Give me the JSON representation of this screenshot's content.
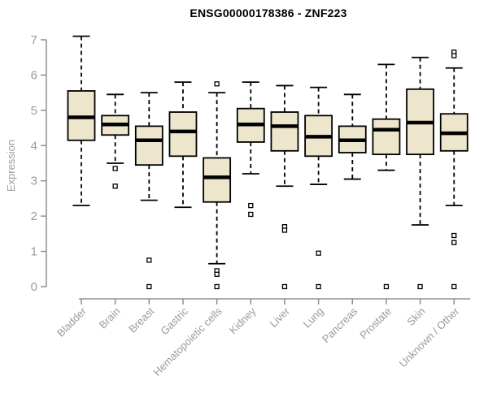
{
  "chart_data": {
    "type": "boxplot",
    "title": "ENSG00000178386 - ZNF223",
    "ylabel": "Expression",
    "xlabel": "",
    "ylim": [
      0,
      7
    ],
    "ytick_step": 1,
    "grid": false,
    "legend": "none",
    "categories": [
      "Bladder",
      "Brain",
      "Breast",
      "Gastric",
      "Hematopoietic cells",
      "Kidney",
      "Liver",
      "Lung",
      "Pancreas",
      "Prostate",
      "Skin",
      "Unknown / Other"
    ],
    "series": [
      {
        "category": "Bladder",
        "whisker_low": 2.3,
        "q1": 4.15,
        "median": 4.8,
        "q3": 5.55,
        "whisker_high": 7.1,
        "outliers": []
      },
      {
        "category": "Brain",
        "whisker_low": 3.5,
        "q1": 4.3,
        "median": 4.6,
        "q3": 4.85,
        "whisker_high": 5.45,
        "outliers": [
          3.35,
          2.85
        ]
      },
      {
        "category": "Breast",
        "whisker_low": 2.45,
        "q1": 3.45,
        "median": 4.15,
        "q3": 4.55,
        "whisker_high": 5.5,
        "outliers": [
          0.75,
          0
        ]
      },
      {
        "category": "Gastric",
        "whisker_low": 2.25,
        "q1": 3.7,
        "median": 4.4,
        "q3": 4.95,
        "whisker_high": 5.8,
        "outliers": []
      },
      {
        "category": "Hematopoietic cells",
        "whisker_low": 0.65,
        "q1": 2.4,
        "median": 3.1,
        "q3": 3.65,
        "whisker_high": 5.5,
        "outliers": [
          5.75,
          0.45,
          0.35,
          0
        ]
      },
      {
        "category": "Kidney",
        "whisker_low": 3.2,
        "q1": 4.1,
        "median": 4.6,
        "q3": 5.05,
        "whisker_high": 5.8,
        "outliers": [
          2.3,
          2.05
        ]
      },
      {
        "category": "Liver",
        "whisker_low": 2.85,
        "q1": 3.85,
        "median": 4.55,
        "q3": 4.95,
        "whisker_high": 5.7,
        "outliers": [
          1.7,
          1.6,
          0
        ]
      },
      {
        "category": "Lung",
        "whisker_low": 2.9,
        "q1": 3.7,
        "median": 4.25,
        "q3": 4.85,
        "whisker_high": 5.65,
        "outliers": [
          0.95,
          0
        ]
      },
      {
        "category": "Pancreas",
        "whisker_low": 3.05,
        "q1": 3.8,
        "median": 4.15,
        "q3": 4.55,
        "whisker_high": 5.45,
        "outliers": []
      },
      {
        "category": "Prostate",
        "whisker_low": 3.3,
        "q1": 3.75,
        "median": 4.45,
        "q3": 4.75,
        "whisker_high": 6.3,
        "outliers": [
          0
        ]
      },
      {
        "category": "Skin",
        "whisker_low": 1.75,
        "q1": 3.75,
        "median": 4.65,
        "q3": 5.6,
        "whisker_high": 6.5,
        "outliers": [
          0
        ]
      },
      {
        "category": "Unknown / Other",
        "whisker_low": 2.3,
        "q1": 3.85,
        "median": 4.35,
        "q3": 4.9,
        "whisker_high": 6.2,
        "outliers": [
          6.65,
          6.55,
          1.45,
          1.25,
          0
        ]
      }
    ],
    "colors": {
      "box_fill": "#EDE6CD",
      "box_stroke": "#000000",
      "median_line": "#000000",
      "whisker_line": "#000000",
      "outlier_stroke": "#000000",
      "axis_line": "#8F8F8F",
      "axis_text": "#9A9A9A",
      "title_text": "#000000",
      "background": "#FFFFFF"
    }
  }
}
